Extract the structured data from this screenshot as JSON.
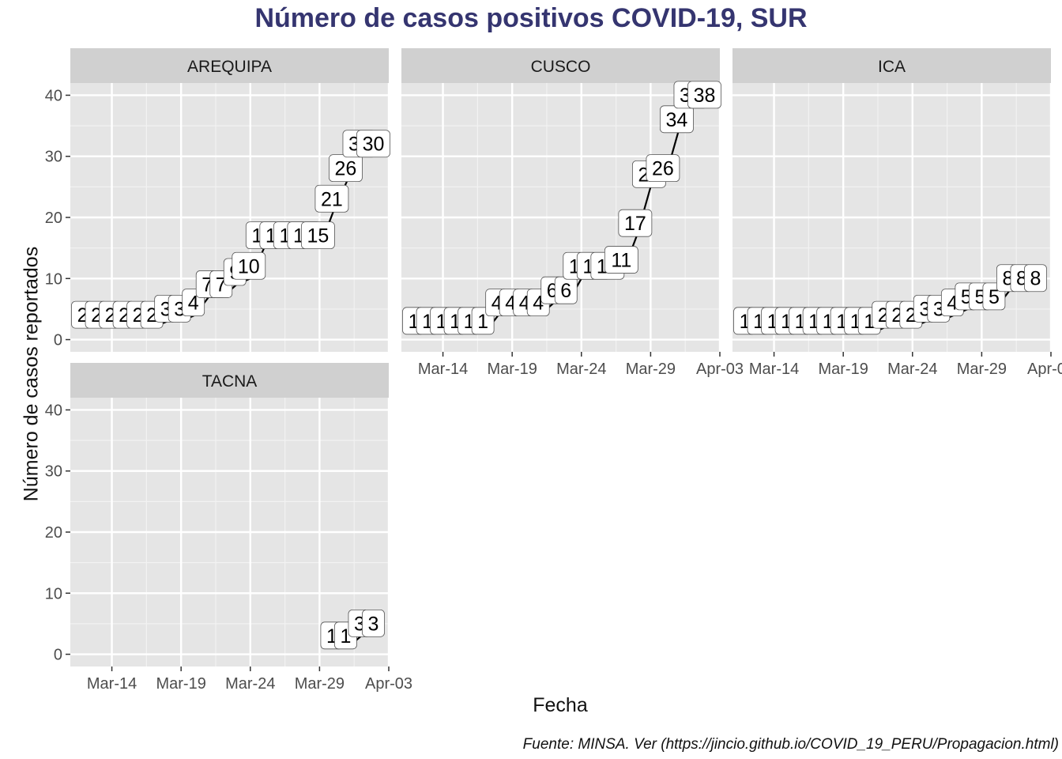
{
  "chart_data": {
    "type": "line",
    "title": "Número de casos positivos COVID-19, SUR",
    "xlabel": "Fecha",
    "ylabel": "Número de casos reportados",
    "caption": "Fuente: MINSA. Ver (https://jincio.github.io/COVID_19_PERU/Propagacion.html)",
    "x_ticks": [
      "Mar-14",
      "Mar-19",
      "Mar-24",
      "Mar-29",
      "Apr-03"
    ],
    "y_ticks": [
      0,
      10,
      20,
      30,
      40
    ],
    "ylim": [
      -2,
      42
    ],
    "xlim": [
      "2020-03-11",
      "2020-04-03"
    ],
    "grid": true,
    "line_color": "#000000",
    "panel_bg": "#e5e5e5",
    "strip_bg": "#d0d0d0",
    "title_color": "#353570",
    "panels": [
      {
        "name": "AREQUIPA",
        "x": [
          "2020-03-12",
          "2020-03-13",
          "2020-03-14",
          "2020-03-15",
          "2020-03-16",
          "2020-03-17",
          "2020-03-18",
          "2020-03-19",
          "2020-03-20",
          "2020-03-21",
          "2020-03-22",
          "2020-03-23",
          "2020-03-24",
          "2020-03-25",
          "2020-03-26",
          "2020-03-27",
          "2020-03-28",
          "2020-03-29",
          "2020-03-30",
          "2020-03-31",
          "2020-04-01",
          "2020-04-02"
        ],
        "y": [
          2,
          2,
          2,
          2,
          2,
          2,
          3,
          3,
          4,
          7,
          7,
          9,
          10,
          15,
          15,
          15,
          15,
          15,
          21,
          26,
          30,
          30
        ]
      },
      {
        "name": "CUSCO",
        "x": [
          "2020-03-12",
          "2020-03-13",
          "2020-03-14",
          "2020-03-15",
          "2020-03-16",
          "2020-03-17",
          "2020-03-18",
          "2020-03-19",
          "2020-03-20",
          "2020-03-21",
          "2020-03-22",
          "2020-03-23",
          "2020-03-24",
          "2020-03-25",
          "2020-03-26",
          "2020-03-27",
          "2020-03-28",
          "2020-03-29",
          "2020-03-30",
          "2020-03-31",
          "2020-04-01",
          "2020-04-02"
        ],
        "y": [
          1,
          1,
          1,
          1,
          1,
          1,
          4,
          4,
          4,
          4,
          6,
          6,
          10,
          10,
          10,
          11,
          17,
          25,
          26,
          34,
          38,
          38
        ]
      },
      {
        "name": "ICA",
        "x": [
          "2020-03-12",
          "2020-03-13",
          "2020-03-14",
          "2020-03-15",
          "2020-03-16",
          "2020-03-17",
          "2020-03-18",
          "2020-03-19",
          "2020-03-20",
          "2020-03-21",
          "2020-03-22",
          "2020-03-23",
          "2020-03-24",
          "2020-03-25",
          "2020-03-26",
          "2020-03-27",
          "2020-03-28",
          "2020-03-29",
          "2020-03-30",
          "2020-03-31",
          "2020-04-01",
          "2020-04-02"
        ],
        "y": [
          1,
          1,
          1,
          1,
          1,
          1,
          1,
          1,
          1,
          1,
          2,
          2,
          2,
          3,
          3,
          4,
          5,
          5,
          5,
          8,
          8,
          8
        ]
      },
      {
        "name": "TACNA",
        "x": [
          "2020-03-30",
          "2020-03-31",
          "2020-04-01",
          "2020-04-02"
        ],
        "y": [
          1,
          1,
          3,
          3
        ]
      }
    ]
  }
}
